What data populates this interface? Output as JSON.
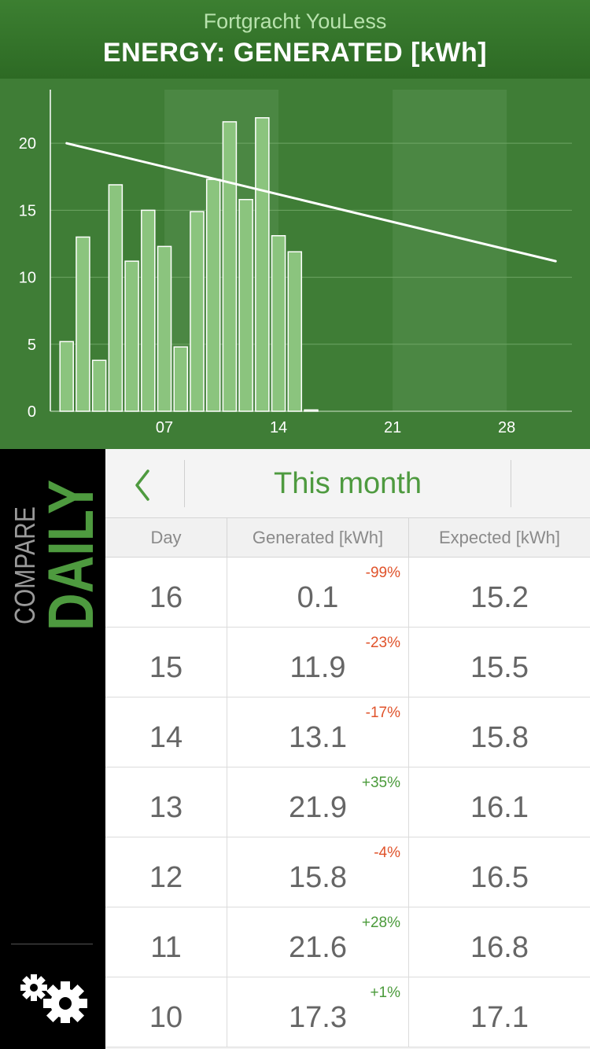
{
  "header": {
    "subtitle": "Fortgracht YouLess",
    "title": "ENERGY: GENERATED [kWh]"
  },
  "colors": {
    "header_bg": "#2d6a24",
    "chart_bg": "#3f7d36",
    "weekend_band": "#4b8743",
    "bar_fill": "#8bc47e",
    "accent_green": "#4e9a3f",
    "negative": "#e0532b",
    "positive": "#4a9a3a"
  },
  "chart_data": {
    "type": "bar",
    "x": [
      1,
      2,
      3,
      4,
      5,
      6,
      7,
      8,
      9,
      10,
      11,
      12,
      13,
      14,
      15,
      16
    ],
    "values": [
      5.2,
      13.0,
      3.8,
      16.9,
      11.2,
      15.0,
      12.3,
      4.8,
      14.9,
      17.3,
      21.6,
      15.8,
      21.9,
      13.1,
      11.9,
      0.1
    ],
    "expected_line": {
      "x": [
        1,
        31
      ],
      "values": [
        20.0,
        11.2
      ]
    },
    "x_ticks": [
      "07",
      "14",
      "21",
      "28"
    ],
    "x_tick_values": [
      7,
      14,
      21,
      28
    ],
    "y_ticks": [
      "0",
      "5",
      "10",
      "15",
      "20"
    ],
    "y_tick_values": [
      0,
      5,
      10,
      15,
      20
    ],
    "xlim": [
      0,
      32
    ],
    "ylim": [
      0,
      24
    ],
    "grid": true,
    "highlight_bands": [
      [
        7,
        14
      ],
      [
        21,
        28
      ]
    ]
  },
  "sidebar": {
    "compare_label": "COMPARE",
    "mode_label": "DAILY",
    "settings_icon": "gears-icon"
  },
  "nav": {
    "back_icon": "chevron-left-icon",
    "title": "This month"
  },
  "table": {
    "columns": [
      "Day",
      "Generated [kWh]",
      "Expected [kWh]"
    ],
    "rows": [
      {
        "day": "16",
        "generated": "0.1",
        "pct": "-99%",
        "trend": "negative",
        "expected": "15.2"
      },
      {
        "day": "15",
        "generated": "11.9",
        "pct": "-23%",
        "trend": "negative",
        "expected": "15.5"
      },
      {
        "day": "14",
        "generated": "13.1",
        "pct": "-17%",
        "trend": "negative",
        "expected": "15.8"
      },
      {
        "day": "13",
        "generated": "21.9",
        "pct": "+35%",
        "trend": "positive",
        "expected": "16.1"
      },
      {
        "day": "12",
        "generated": "15.8",
        "pct": "-4%",
        "trend": "negative",
        "expected": "16.5"
      },
      {
        "day": "11",
        "generated": "21.6",
        "pct": "+28%",
        "trend": "positive",
        "expected": "16.8"
      },
      {
        "day": "10",
        "generated": "17.3",
        "pct": "+1%",
        "trend": "positive",
        "expected": "17.1"
      }
    ]
  }
}
